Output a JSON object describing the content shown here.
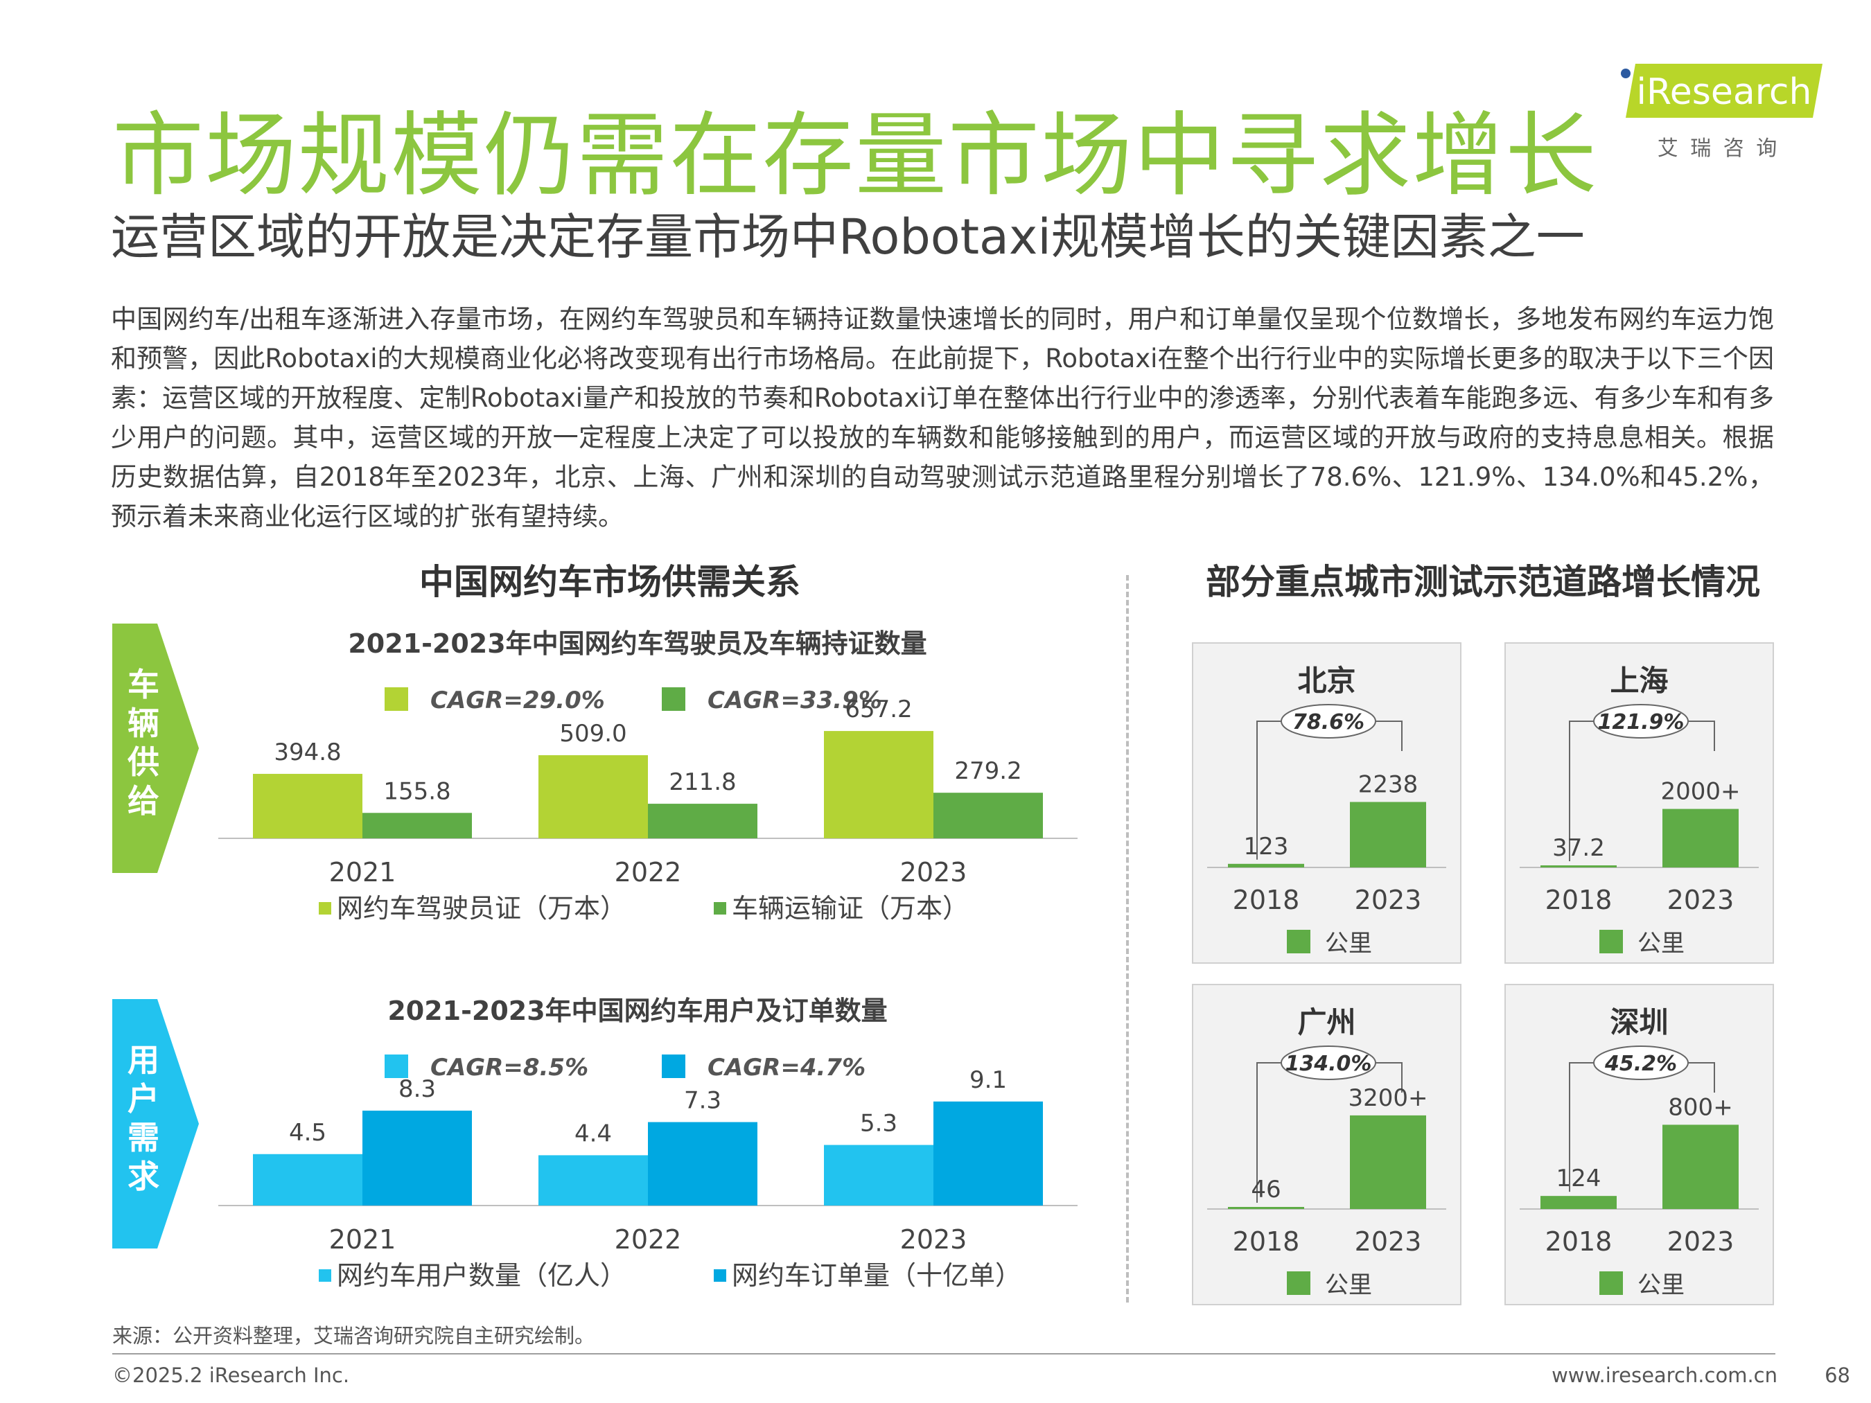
{
  "header": {
    "title": "市场规模仍需在存量市场中寻求增长",
    "subtitle": "运营区域的开放是决定存量市场中Robotaxi规模增长的关键因素之一",
    "logo_text": "iResearch",
    "logo_cn": "艾  瑞  咨  询"
  },
  "intro_text": "中国网约车/出租车逐渐进入存量市场，在网约车驾驶员和车辆持证数量快速增长的同时，用户和订单量仅呈现个位数增长，多地发布网约车运力饱和预警，因此Robotaxi的大规模商业化必将改变现有出行市场格局。在此前提下，Robotaxi在整个出行行业中的实际增长更多的取决于以下三个因素：运营区域的开放程度、定制Robotaxi量产和投放的节奏和Robotaxi订单在整体出行行业中的渗透率，分别代表着车能跑多远、有多少车和有多少用户的问题。其中，运营区域的开放一定程度上决定了可以投放的车辆数和能够接触到的用户，而运营区域的开放与政府的支持息息相关。根据历史数据估算，自2018年至2023年，北京、上海、广州和深圳的自动驾驶测试示范道路里程分别增长了78.6%、121.9%、134.0%和45.2%，预示着未来商业化运行区域的扩张有望持续。",
  "left_section_title": "中国网约车市场供需关系",
  "right_section_title": "部分重点城市测试示范道路增长情况",
  "side_labels": {
    "supply": "车辆供给",
    "demand": "用户需求"
  },
  "colors": {
    "title_green": "#8cc63f",
    "supply_light": "#b3d334",
    "supply_dark": "#5fac46",
    "demand_light": "#22c3ef",
    "demand_dark": "#00a8e1",
    "city_bar": "#5fac46"
  },
  "chart_data": [
    {
      "type": "bar",
      "title": "2021-2023年中国网约车驾驶员及车辆持证数量",
      "categories": [
        "2021",
        "2022",
        "2023"
      ],
      "series": [
        {
          "name": "网约车驾驶员证（万本）",
          "values": [
            394.8,
            509.0,
            657.2
          ],
          "labels": [
            "394.8",
            "509.0",
            "657.2"
          ],
          "cagr": "CAGR=29.0%"
        },
        {
          "name": "车辆运输证（万本）",
          "values": [
            155.8,
            211.8,
            279.2
          ],
          "labels": [
            "155.8",
            "211.8",
            "279.2"
          ],
          "cagr": "CAGR=33.9%"
        }
      ],
      "ylim": [
        0,
        700
      ]
    },
    {
      "type": "bar",
      "title": "2021-2023年中国网约车用户及订单数量",
      "categories": [
        "2021",
        "2022",
        "2023"
      ],
      "series": [
        {
          "name": "网约车用户数量（亿人）",
          "values": [
            4.5,
            4.4,
            5.3
          ],
          "labels": [
            "4.5",
            "4.4",
            "5.3"
          ],
          "cagr": "CAGR=8.5%"
        },
        {
          "name": "网约车订单量（十亿单）",
          "values": [
            8.3,
            7.3,
            9.1
          ],
          "labels": [
            "8.3",
            "7.3",
            "9.1"
          ],
          "cagr": "CAGR=4.7%"
        }
      ],
      "ylim": [
        0,
        10
      ]
    },
    {
      "type": "bar",
      "title": "北京",
      "categories": [
        "2018",
        "2023"
      ],
      "series": [
        {
          "name": "公里",
          "values": [
            123,
            2238
          ],
          "labels": [
            "123",
            "2238"
          ]
        }
      ],
      "growth": "78.6%",
      "ylim": [
        0,
        3600
      ]
    },
    {
      "type": "bar",
      "title": "上海",
      "categories": [
        "2018",
        "2023"
      ],
      "series": [
        {
          "name": "公里",
          "values": [
            37.2,
            2000
          ],
          "labels": [
            "37.2",
            "2000+"
          ]
        }
      ],
      "growth": "121.9%",
      "ylim": [
        0,
        3600
      ]
    },
    {
      "type": "bar",
      "title": "广州",
      "categories": [
        "2018",
        "2023"
      ],
      "series": [
        {
          "name": "公里",
          "values": [
            46,
            3200
          ],
          "labels": [
            "46",
            "3200+"
          ]
        }
      ],
      "growth": "134.0%",
      "ylim": [
        0,
        3600
      ]
    },
    {
      "type": "bar",
      "title": "深圳",
      "categories": [
        "2018",
        "2023"
      ],
      "series": [
        {
          "name": "公里",
          "values": [
            124,
            800
          ],
          "labels": [
            "124",
            "800+"
          ]
        }
      ],
      "growth": "45.2%",
      "ylim": [
        0,
        1000
      ]
    }
  ],
  "footer": {
    "source": "来源：公开资料整理，艾瑞咨询研究院自主研究绘制。",
    "copyright": "©2025.2 iResearch Inc.",
    "website": "www.iresearch.com.cn",
    "page": "68"
  }
}
